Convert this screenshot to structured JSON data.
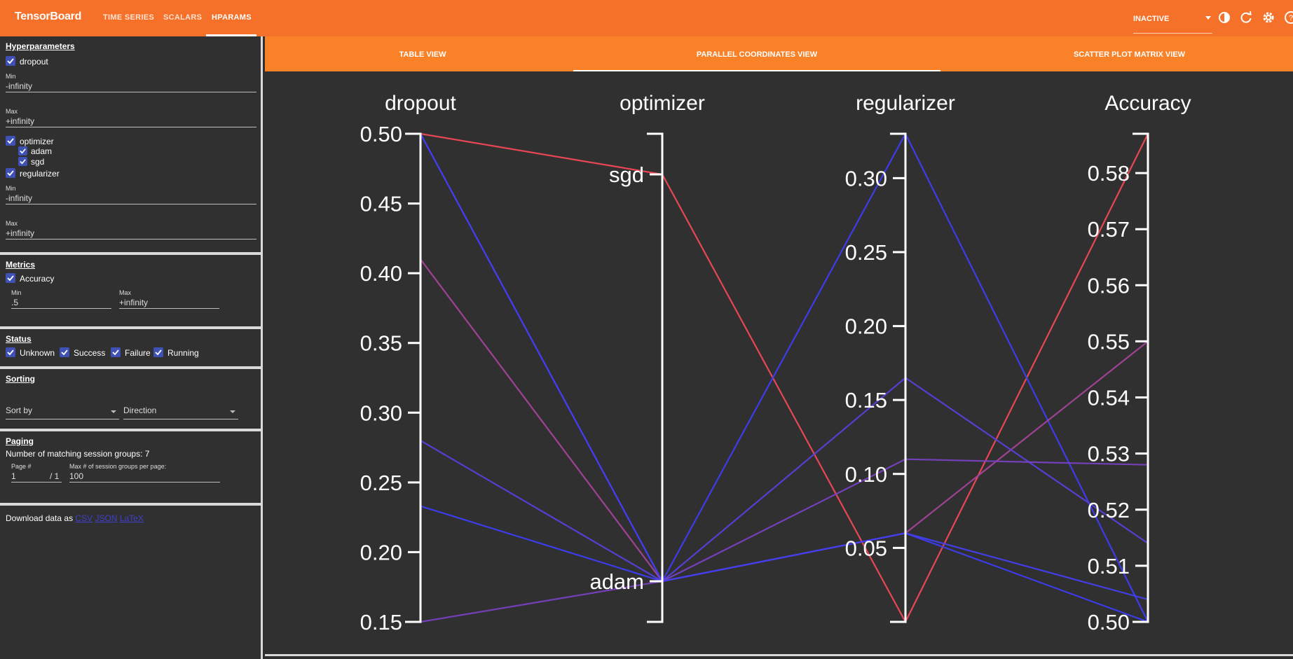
{
  "app": {
    "title": "TensorBoard",
    "run_status": "INACTIVE"
  },
  "nav": {
    "tabs": [
      {
        "label": "TIME SERIES"
      },
      {
        "label": "SCALARS"
      },
      {
        "label": "HPARAMS"
      }
    ]
  },
  "icons": {
    "theme": "theme-toggle-icon",
    "refresh": "refresh-icon",
    "settings": "gear-icon",
    "help": "help-icon"
  },
  "hparams": {
    "title": "Hyperparameters",
    "dropout": {
      "label": "dropout",
      "min_label": "Min",
      "min": "-infinity",
      "max_label": "Max",
      "max": "+infinity"
    },
    "optimizer": {
      "label": "optimizer",
      "values": [
        "adam",
        "sgd"
      ]
    },
    "regularizer": {
      "label": "regularizer",
      "min_label": "Min",
      "min": "-infinity",
      "max_label": "Max",
      "max": "+infinity"
    }
  },
  "metrics": {
    "title": "Metrics",
    "accuracy": {
      "label": "Accuracy",
      "min_label": "Min",
      "min": ".5",
      "max_label": "Max",
      "max": "+infinity"
    }
  },
  "status": {
    "title": "Status",
    "options": [
      "Unknown",
      "Success",
      "Failure",
      "Running"
    ]
  },
  "sorting": {
    "title": "Sorting",
    "sort_by": "Sort by",
    "direction": "Direction"
  },
  "paging": {
    "title": "Paging",
    "matching": "Number of matching session groups: 7",
    "page_label": "Page #",
    "page": "1",
    "page_total": "/ 1",
    "per_page_label": "Max # of session groups per page:",
    "per_page": "100"
  },
  "download": {
    "text": "Download data as",
    "links": [
      "CSV",
      "JSON",
      "LaTeX"
    ]
  },
  "view_tabs": [
    "TABLE VIEW",
    "PARALLEL COORDINATES VIEW",
    "SCATTER PLOT MATRIX VIEW"
  ],
  "colors": {
    "header": "#f57028",
    "tab_bar": "#f98128",
    "background": "#303030",
    "checkbox": "#3f51b5",
    "high": "#f24857",
    "low": "#3d3df5"
  },
  "chart_data": {
    "type": "parallel-coordinates",
    "axes": [
      {
        "name": "dropout",
        "kind": "numeric",
        "range": [
          0.15,
          0.5
        ],
        "ticks": [
          "0.50",
          "0.45",
          "0.40",
          "0.35",
          "0.30",
          "0.25",
          "0.20",
          "0.15"
        ]
      },
      {
        "name": "optimizer",
        "kind": "categorical",
        "categories": [
          "sgd",
          "adam"
        ]
      },
      {
        "name": "regularizer",
        "kind": "numeric",
        "range": [
          0.0,
          0.33
        ],
        "ticks": [
          "0.30",
          "0.25",
          "0.20",
          "0.15",
          "0.10",
          "0.05"
        ]
      },
      {
        "name": "Accuracy",
        "kind": "numeric",
        "range": [
          0.5,
          0.587
        ],
        "ticks": [
          "0.58",
          "0.57",
          "0.56",
          "0.55",
          "0.54",
          "0.53",
          "0.52",
          "0.51",
          "0.50"
        ]
      }
    ],
    "sessions": [
      {
        "dropout": 0.5,
        "optimizer": "sgd",
        "regularizer": 0.0,
        "Accuracy": 0.587
      },
      {
        "dropout": 0.5,
        "optimizer": "adam",
        "regularizer": 0.33,
        "Accuracy": 0.5
      },
      {
        "dropout": 0.41,
        "optimizer": "adam",
        "regularizer": 0.06,
        "Accuracy": 0.55
      },
      {
        "dropout": 0.28,
        "optimizer": "adam",
        "regularizer": 0.165,
        "Accuracy": 0.514
      },
      {
        "dropout": 0.233,
        "optimizer": "adam",
        "regularizer": 0.06,
        "Accuracy": 0.5
      },
      {
        "dropout": 0.15,
        "optimizer": "adam",
        "regularizer": 0.11,
        "Accuracy": 0.528
      },
      {
        "dropout": 0.5,
        "optimizer": "adam",
        "regularizer": 0.06,
        "Accuracy": 0.504
      }
    ]
  }
}
